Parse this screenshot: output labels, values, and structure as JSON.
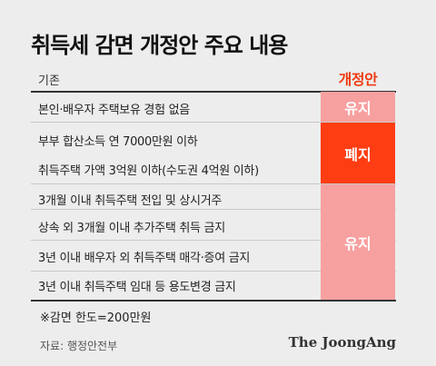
{
  "title": "취득세 감면 개정안 주요 내용",
  "header": {
    "left": "기존",
    "right": "개정안"
  },
  "rows": [
    "본인·배우자 주택보유 경험 없음",
    "부부 합산소득 연 7000만원 이하",
    "취득주택 가액 3억원 이하(수도권 4억원 이하)",
    "3개월 이내 취득주택 전입 및 상시거주",
    "상속 외 3개월 이내 추가주택 취득 금지",
    "3년 이내 배우자 외 취득주택 매각·증여 금지",
    "3년 이내 취득주택 임대 등 용도변경 금지"
  ],
  "blocks": [
    {
      "label": "유지",
      "color": "#f7a0a0"
    },
    {
      "label": "폐지",
      "color": "#ff3d12"
    },
    {
      "label": "유지",
      "color": "#f7a0a0"
    }
  ],
  "note": "※감면 한도=200만원",
  "source": "자료: 행정안전부",
  "logo": "The JoongAng",
  "colors": {
    "accent": "#ef3b10",
    "pink": "#f7a0a0",
    "red": "#ff3d12",
    "background": "#ededed"
  }
}
